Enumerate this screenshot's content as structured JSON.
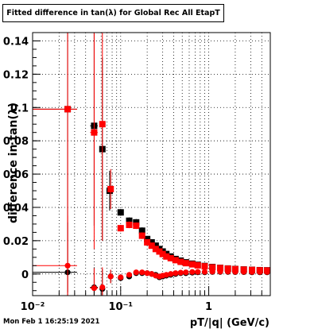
{
  "title": "Fitted difference in tan(λ) for Global Rec All EtapT",
  "timestamp": "Mon Feb  1 16:25:19 2021",
  "chart_data": {
    "type": "scatter",
    "title": "Fitted difference in tan(λ) for Global Rec All EtapT",
    "xlabel": "pT/|q| (GeV/c)",
    "ylabel": "difference in tan(λ)",
    "x_scale": "log",
    "xlim": [
      0.01,
      5
    ],
    "ylim": [
      -0.013,
      0.145
    ],
    "grid": true,
    "x_ticks": [
      {
        "value": 0.01,
        "label": "10⁻²"
      },
      {
        "value": 0.1,
        "label": "10⁻¹"
      },
      {
        "value": 1,
        "label": "1"
      }
    ],
    "y_ticks": [
      {
        "value": 0,
        "label": "0"
      },
      {
        "value": 0.02,
        "label": "0.02"
      },
      {
        "value": 0.04,
        "label": "0.04"
      },
      {
        "value": 0.06,
        "label": "0.06"
      },
      {
        "value": 0.08,
        "label": "0.08"
      },
      {
        "value": 0.1,
        "label": "0.1"
      },
      {
        "value": 0.12,
        "label": "0.12"
      },
      {
        "value": 0.14,
        "label": "0.14"
      }
    ],
    "series": [
      {
        "color": "#000000",
        "marker": "square",
        "points": [
          {
            "x": 0.025,
            "y": 0.099,
            "xerr": [
              0.015,
              0.007
            ],
            "yerr": 0.11
          },
          {
            "x": 0.05,
            "y": 0.089,
            "xerr": [
              0.005,
              0.005
            ],
            "yerr": 0.06
          },
          {
            "x": 0.062,
            "y": 0.075,
            "xerr": [
              0.004,
              0.004
            ],
            "yerr": 0.055
          },
          {
            "x": 0.075,
            "y": 0.05,
            "xerr": [
              0.005,
              0.005
            ],
            "yerr": 0.012
          },
          {
            "x": 0.1,
            "y": 0.037,
            "yerr": 0.002
          },
          {
            "x": 0.125,
            "y": 0.032,
            "yerr": 0.002
          },
          {
            "x": 0.15,
            "y": 0.031,
            "yerr": 0.002
          },
          {
            "x": 0.175,
            "y": 0.026,
            "yerr": 0.002
          },
          {
            "x": 0.2,
            "y": 0.021,
            "yerr": 0.001
          },
          {
            "x": 0.225,
            "y": 0.019,
            "yerr": 0.001
          },
          {
            "x": 0.25,
            "y": 0.017,
            "yerr": 0.001
          },
          {
            "x": 0.275,
            "y": 0.015,
            "yerr": 0.001
          },
          {
            "x": 0.3,
            "y": 0.0135,
            "yerr": 0.001
          },
          {
            "x": 0.33,
            "y": 0.012,
            "yerr": 0.001
          },
          {
            "x": 0.37,
            "y": 0.0105,
            "yerr": 0.001
          },
          {
            "x": 0.42,
            "y": 0.009,
            "yerr": 0.001
          },
          {
            "x": 0.48,
            "y": 0.008,
            "yerr": 0.001
          },
          {
            "x": 0.55,
            "y": 0.007,
            "yerr": 0.001
          },
          {
            "x": 0.65,
            "y": 0.0062,
            "yerr": 0.001
          },
          {
            "x": 0.75,
            "y": 0.0055,
            "yerr": 0.001
          },
          {
            "x": 0.9,
            "y": 0.0048,
            "yerr": 0.001
          },
          {
            "x": 1.1,
            "y": 0.0042,
            "yerr": 0.001
          },
          {
            "x": 1.35,
            "y": 0.0037,
            "yerr": 0.001
          },
          {
            "x": 1.65,
            "y": 0.0033,
            "yerr": 0.001
          },
          {
            "x": 2.0,
            "y": 0.003,
            "yerr": 0.001
          },
          {
            "x": 2.5,
            "y": 0.0027,
            "yerr": 0.001
          },
          {
            "x": 3.1,
            "y": 0.0025,
            "yerr": 0.001
          },
          {
            "x": 3.8,
            "y": 0.0023,
            "yerr": 0.001
          },
          {
            "x": 4.6,
            "y": 0.0022,
            "yerr": 0.001
          }
        ]
      },
      {
        "color": "#ff0000",
        "marker": "square",
        "points": [
          {
            "x": 0.025,
            "y": 0.099,
            "xerr": [
              0.015,
              0.007
            ],
            "yerr": 0.11
          },
          {
            "x": 0.05,
            "y": 0.085,
            "xerr": [
              0.005,
              0.005
            ],
            "yerr": 0.07
          },
          {
            "x": 0.062,
            "y": 0.09,
            "xerr": [
              0.004,
              0.004
            ],
            "yerr": 0.07
          },
          {
            "x": 0.077,
            "y": 0.051,
            "xerr": [
              0.005,
              0.005
            ],
            "yerr": 0.012
          },
          {
            "x": 0.1,
            "y": 0.0275,
            "yerr": 0.002
          },
          {
            "x": 0.125,
            "y": 0.0295,
            "yerr": 0.002
          },
          {
            "x": 0.15,
            "y": 0.029,
            "yerr": 0.002
          },
          {
            "x": 0.175,
            "y": 0.023,
            "yerr": 0.002
          },
          {
            "x": 0.2,
            "y": 0.019,
            "yerr": 0.001
          },
          {
            "x": 0.225,
            "y": 0.017,
            "yerr": 0.001
          },
          {
            "x": 0.25,
            "y": 0.015,
            "yerr": 0.001
          },
          {
            "x": 0.275,
            "y": 0.0135,
            "yerr": 0.001
          },
          {
            "x": 0.3,
            "y": 0.012,
            "yerr": 0.001
          },
          {
            "x": 0.33,
            "y": 0.0105,
            "yerr": 0.001
          },
          {
            "x": 0.37,
            "y": 0.0095,
            "yerr": 0.001
          },
          {
            "x": 0.42,
            "y": 0.0083,
            "yerr": 0.001
          },
          {
            "x": 0.48,
            "y": 0.0073,
            "yerr": 0.001
          },
          {
            "x": 0.55,
            "y": 0.0065,
            "yerr": 0.001
          },
          {
            "x": 0.65,
            "y": 0.0058,
            "yerr": 0.001
          },
          {
            "x": 0.75,
            "y": 0.0052,
            "yerr": 0.001
          },
          {
            "x": 0.9,
            "y": 0.0046,
            "yerr": 0.001
          },
          {
            "x": 1.1,
            "y": 0.004,
            "yerr": 0.001
          },
          {
            "x": 1.35,
            "y": 0.0036,
            "yerr": 0.001
          },
          {
            "x": 1.65,
            "y": 0.0032,
            "yerr": 0.001
          },
          {
            "x": 2.0,
            "y": 0.0029,
            "yerr": 0.001
          },
          {
            "x": 2.5,
            "y": 0.0026,
            "yerr": 0.001
          },
          {
            "x": 3.1,
            "y": 0.0024,
            "yerr": 0.001
          },
          {
            "x": 3.8,
            "y": 0.0022,
            "yerr": 0.001
          },
          {
            "x": 4.6,
            "y": 0.0021,
            "yerr": 0.001
          }
        ]
      },
      {
        "color": "#000000",
        "marker": "circle",
        "points": [
          {
            "x": 0.025,
            "y": 0.001,
            "xerr": [
              0.015,
              0.007
            ],
            "yerr": 0.03
          },
          {
            "x": 0.05,
            "y": -0.008,
            "xerr": [
              0.005,
              0.005
            ],
            "yerr": 0.012
          },
          {
            "x": 0.062,
            "y": -0.009,
            "xerr": [
              0.004,
              0.004
            ],
            "yerr": 0.012
          },
          {
            "x": 0.077,
            "y": -0.0015,
            "xerr": [
              0.005,
              0.005
            ],
            "yerr": 0.004
          },
          {
            "x": 0.1,
            "y": -0.0025,
            "yerr": 0.001
          },
          {
            "x": 0.125,
            "y": -0.0015,
            "yerr": 0.001
          },
          {
            "x": 0.15,
            "y": 0.0005,
            "yerr": 0.001
          },
          {
            "x": 0.175,
            "y": 0.0005,
            "yerr": 0.001
          },
          {
            "x": 0.2,
            "y": 0.0005,
            "yerr": 0.001
          },
          {
            "x": 0.225,
            "y": 0.0,
            "yerr": 0.001
          },
          {
            "x": 0.25,
            "y": -0.0005,
            "yerr": 0.001
          },
          {
            "x": 0.275,
            "y": -0.002,
            "yerr": 0.001
          },
          {
            "x": 0.3,
            "y": -0.0015,
            "yerr": 0.001
          },
          {
            "x": 0.33,
            "y": -0.001,
            "yerr": 0.001
          },
          {
            "x": 0.37,
            "y": -0.0005,
            "yerr": 0.001
          },
          {
            "x": 0.42,
            "y": 0.0,
            "yerr": 0.001
          },
          {
            "x": 0.48,
            "y": 0.0005,
            "yerr": 0.001
          },
          {
            "x": 0.55,
            "y": 0.0005,
            "yerr": 0.001
          },
          {
            "x": 0.65,
            "y": 0.0008,
            "yerr": 0.001
          },
          {
            "x": 0.75,
            "y": 0.001,
            "yerr": 0.001
          },
          {
            "x": 0.9,
            "y": 0.001,
            "yerr": 0.001
          },
          {
            "x": 1.1,
            "y": 0.0012,
            "yerr": 0.001
          },
          {
            "x": 1.35,
            "y": 0.0012,
            "yerr": 0.001
          },
          {
            "x": 1.65,
            "y": 0.0012,
            "yerr": 0.001
          },
          {
            "x": 2.0,
            "y": 0.0011,
            "yerr": 0.001
          },
          {
            "x": 2.5,
            "y": 0.0011,
            "yerr": 0.001
          },
          {
            "x": 3.1,
            "y": 0.001,
            "yerr": 0.001
          },
          {
            "x": 3.8,
            "y": 0.001,
            "yerr": 0.001
          },
          {
            "x": 4.6,
            "y": 0.001,
            "yerr": 0.001
          }
        ]
      },
      {
        "color": "#ff0000",
        "marker": "circle",
        "points": [
          {
            "x": 0.025,
            "y": 0.005,
            "xerr": [
              0.015,
              0.007
            ],
            "yerr": 0.03
          },
          {
            "x": 0.05,
            "y": -0.0085,
            "xerr": [
              0.005,
              0.005
            ],
            "yerr": 0.012
          },
          {
            "x": 0.062,
            "y": -0.008,
            "xerr": [
              0.004,
              0.004
            ],
            "yerr": 0.012
          },
          {
            "x": 0.077,
            "y": -0.0015,
            "xerr": [
              0.005,
              0.005
            ],
            "yerr": 0.004
          },
          {
            "x": 0.1,
            "y": -0.002,
            "yerr": 0.001
          },
          {
            "x": 0.125,
            "y": -0.0005,
            "yerr": 0.001
          },
          {
            "x": 0.15,
            "y": 0.001,
            "yerr": 0.001
          },
          {
            "x": 0.175,
            "y": 0.001,
            "yerr": 0.001
          },
          {
            "x": 0.2,
            "y": 0.0005,
            "yerr": 0.001
          },
          {
            "x": 0.225,
            "y": 0.0,
            "yerr": 0.001
          },
          {
            "x": 0.25,
            "y": -0.001,
            "yerr": 0.001
          },
          {
            "x": 0.275,
            "y": -0.0015,
            "yerr": 0.001
          },
          {
            "x": 0.3,
            "y": -0.001,
            "yerr": 0.001
          },
          {
            "x": 0.33,
            "y": -0.0005,
            "yerr": 0.001
          },
          {
            "x": 0.37,
            "y": 0.0,
            "yerr": 0.001
          },
          {
            "x": 0.42,
            "y": 0.0005,
            "yerr": 0.001
          },
          {
            "x": 0.48,
            "y": 0.0008,
            "yerr": 0.001
          },
          {
            "x": 0.55,
            "y": 0.001,
            "yerr": 0.001
          },
          {
            "x": 0.65,
            "y": 0.0012,
            "yerr": 0.001
          },
          {
            "x": 0.75,
            "y": 0.0013,
            "yerr": 0.001
          },
          {
            "x": 0.9,
            "y": 0.0013,
            "yerr": 0.001
          },
          {
            "x": 1.1,
            "y": 0.0014,
            "yerr": 0.001
          },
          {
            "x": 1.35,
            "y": 0.0014,
            "yerr": 0.001
          },
          {
            "x": 1.65,
            "y": 0.0014,
            "yerr": 0.001
          },
          {
            "x": 2.0,
            "y": 0.0013,
            "yerr": 0.001
          },
          {
            "x": 2.5,
            "y": 0.0013,
            "yerr": 0.001
          },
          {
            "x": 3.1,
            "y": 0.0012,
            "yerr": 0.001
          },
          {
            "x": 3.8,
            "y": 0.0012,
            "yerr": 0.001
          },
          {
            "x": 4.6,
            "y": 0.0012,
            "yerr": 0.001
          }
        ]
      }
    ]
  }
}
